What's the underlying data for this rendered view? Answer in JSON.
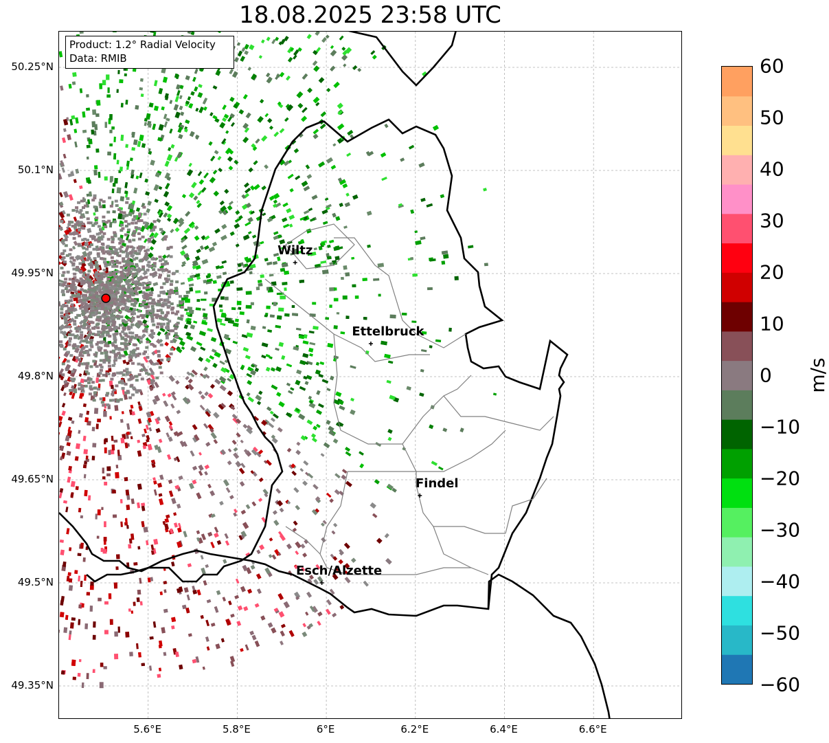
{
  "title": "18.08.2025 23:58 UTC",
  "info": {
    "product": "Product: 1.2° Radial Velocity",
    "source": "Data: RMIB"
  },
  "lat_ticks": [
    "50.25°N",
    "50.1°N",
    "49.95°N",
    "49.8°N",
    "49.65°N",
    "49.5°N",
    "49.35°N"
  ],
  "lon_ticks": [
    "5.6°E",
    "5.8°E",
    "6°E",
    "6.2°E",
    "6.4°E",
    "6.6°E"
  ],
  "cities": [
    {
      "name": "Wiltz",
      "lon": 5.93,
      "lat": 49.966
    },
    {
      "name": "Ettelbruck",
      "lon": 6.1,
      "lat": 49.848
    },
    {
      "name": "Findel",
      "lon": 6.21,
      "lat": 49.627
    },
    {
      "name": "Esch/Alzette",
      "lon": 5.99,
      "lat": 49.5
    }
  ],
  "radar_site": {
    "lon": 5.505,
    "lat": 49.914
  },
  "colorbar": {
    "unit": "m/s",
    "range": [
      -60,
      60
    ],
    "ticks": [
      "60",
      "50",
      "40",
      "30",
      "20",
      "10",
      "0",
      "−10",
      "−20",
      "−30",
      "−40",
      "−50",
      "−60"
    ],
    "colors": [
      "#1f77b4",
      "#28b8c8",
      "#2ee0e0",
      "#aeeef0",
      "#8ff0b0",
      "#55f060",
      "#00e010",
      "#00a000",
      "#006400",
      "#5c7d5c",
      "#8a7a80",
      "#885058",
      "#6e0000",
      "#d00000",
      "#ff0010",
      "#ff5070",
      "#ff90c8",
      "#ffb0b0",
      "#ffe090",
      "#ffc080",
      "#ffa060"
    ]
  }
}
